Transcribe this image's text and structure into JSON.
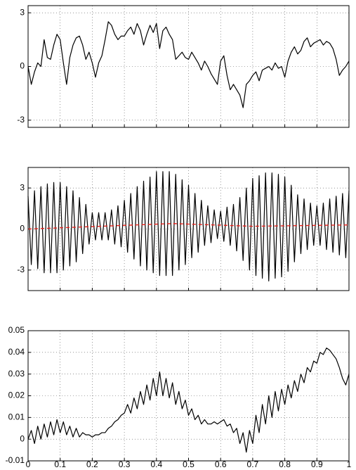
{
  "chart_data": [
    {
      "type": "line",
      "x": [
        0,
        0.01,
        0.02,
        0.03,
        0.04,
        0.05,
        0.06,
        0.07,
        0.08,
        0.09,
        0.1,
        0.11,
        0.12,
        0.13,
        0.14,
        0.15,
        0.16,
        0.17,
        0.18,
        0.19,
        0.2,
        0.21,
        0.22,
        0.23,
        0.24,
        0.25,
        0.26,
        0.27,
        0.28,
        0.29,
        0.3,
        0.31,
        0.32,
        0.33,
        0.34,
        0.35,
        0.36,
        0.37,
        0.38,
        0.39,
        0.4,
        0.41,
        0.42,
        0.43,
        0.44,
        0.45,
        0.46,
        0.47,
        0.48,
        0.49,
        0.5,
        0.51,
        0.52,
        0.53,
        0.54,
        0.55,
        0.56,
        0.57,
        0.58,
        0.59,
        0.6,
        0.61,
        0.62,
        0.63,
        0.64,
        0.65,
        0.66,
        0.67,
        0.68,
        0.69,
        0.7,
        0.71,
        0.72,
        0.73,
        0.74,
        0.75,
        0.76,
        0.77,
        0.78,
        0.79,
        0.8,
        0.81,
        0.82,
        0.83,
        0.84,
        0.85,
        0.86,
        0.87,
        0.88,
        0.89,
        0.9,
        0.91,
        0.92,
        0.93,
        0.94,
        0.95,
        0.96,
        0.97,
        0.98,
        0.99,
        1
      ],
      "series": [
        {
          "color": "#000000",
          "values": [
            0,
            -1,
            -0.3,
            0.2,
            0,
            1.5,
            0.5,
            0.4,
            1.2,
            1.8,
            1.5,
            0.2,
            -1.0,
            0.5,
            1.2,
            1.6,
            1.7,
            1.2,
            0.4,
            0.8,
            0.2,
            -0.6,
            0.2,
            0.6,
            1.5,
            2.5,
            2.3,
            1.8,
            1.5,
            1.7,
            1.7,
            2.0,
            2.2,
            1.8,
            2.4,
            2.0,
            1.2,
            1.8,
            2.3,
            1.9,
            2.4,
            1.0,
            2.0,
            2.2,
            1.8,
            1.5,
            0.4,
            0.6,
            0.8,
            0.5,
            0.4,
            0.8,
            0.5,
            0.2,
            -0.2,
            0.3,
            0.0,
            -0.4,
            -0.7,
            -1.0,
            0.3,
            0.6,
            -0.5,
            -1.3,
            -1.0,
            -1.3,
            -1.6,
            -2.3,
            -1.0,
            -0.8,
            -0.5,
            -0.3,
            -0.8,
            -0.2,
            -0.1,
            0.0,
            -0.2,
            0.2,
            -0.1,
            0.0,
            -0.6,
            0.3,
            0.8,
            1.1,
            0.7,
            0.9,
            1.4,
            1.6,
            1.1,
            1.3,
            1.4,
            1.5,
            1.2,
            1.4,
            1.3,
            1.0,
            0.4,
            -0.5,
            -0.2,
            0.0,
            0.3
          ]
        }
      ],
      "xlim": [
        0,
        1
      ],
      "xticks": [
        0,
        0.1,
        0.2,
        0.3,
        0.4,
        0.5,
        0.6,
        0.7,
        0.8,
        0.9,
        1
      ],
      "show_xtick_labels": false,
      "ylim": [
        -3.4,
        3.4
      ],
      "yticks": [
        -3,
        0,
        3
      ],
      "grid": true
    },
    {
      "type": "line",
      "x": [
        0,
        0.01,
        0.02,
        0.03,
        0.04,
        0.05,
        0.06,
        0.07,
        0.08,
        0.09,
        0.1,
        0.11,
        0.12,
        0.13,
        0.14,
        0.15,
        0.16,
        0.17,
        0.18,
        0.19,
        0.2,
        0.21,
        0.22,
        0.23,
        0.24,
        0.25,
        0.26,
        0.27,
        0.28,
        0.29,
        0.3,
        0.31,
        0.32,
        0.33,
        0.34,
        0.35,
        0.36,
        0.37,
        0.38,
        0.39,
        0.4,
        0.41,
        0.42,
        0.43,
        0.44,
        0.45,
        0.46,
        0.47,
        0.48,
        0.49,
        0.5,
        0.51,
        0.52,
        0.53,
        0.54,
        0.55,
        0.56,
        0.57,
        0.58,
        0.59,
        0.6,
        0.61,
        0.62,
        0.63,
        0.64,
        0.65,
        0.66,
        0.67,
        0.68,
        0.69,
        0.7,
        0.71,
        0.72,
        0.73,
        0.74,
        0.75,
        0.76,
        0.77,
        0.78,
        0.79,
        0.8,
        0.81,
        0.82,
        0.83,
        0.84,
        0.85,
        0.86,
        0.87,
        0.88,
        0.89,
        0.9,
        0.91,
        0.92,
        0.93,
        0.94,
        0.95,
        0.96,
        0.97,
        0.98,
        0.99,
        1
      ],
      "series": [
        {
          "color": "#000000",
          "values": [
            2.4,
            -2.6,
            2.8,
            -2.9,
            3.1,
            -3.2,
            3.3,
            -3.2,
            3.4,
            -3.2,
            3.4,
            -3.0,
            3.1,
            -2.7,
            2.8,
            -2.4,
            2.3,
            -1.8,
            1.8,
            -1.1,
            1.2,
            -0.8,
            1.2,
            -0.8,
            1.2,
            -0.8,
            1.4,
            -1.1,
            1.7,
            -1.3,
            2.1,
            -1.7,
            2.6,
            -2.2,
            3.1,
            -2.7,
            3.5,
            -3.0,
            3.8,
            -3.2,
            4.2,
            -3.4,
            4.2,
            -3.4,
            4.2,
            -3.4,
            4.0,
            -3.0,
            3.6,
            -2.6,
            3.2,
            -2.1,
            2.6,
            -1.7,
            2.1,
            -1.2,
            1.7,
            -1.0,
            1.4,
            -0.7,
            1.3,
            -0.9,
            1.6,
            -1.2,
            1.8,
            -1.6,
            2.3,
            -2.3,
            3.0,
            -3.0,
            3.7,
            -3.4,
            3.9,
            -3.6,
            4.1,
            -3.8,
            4.1,
            -3.6,
            4.0,
            -3.5,
            3.8,
            -3.1,
            3.2,
            -2.4,
            2.5,
            -1.8,
            2.2,
            -1.5,
            1.9,
            -1.2,
            1.7,
            -1.2,
            1.9,
            -1.5,
            2.2,
            -1.7,
            2.4,
            -1.9,
            2.6,
            -2.1,
            2.8
          ]
        },
        {
          "color": "#e8211b",
          "dashed": true,
          "x": [
            0,
            0.45,
            0.7,
            1
          ],
          "values": [
            0,
            0.4,
            0.2,
            0.3
          ]
        }
      ],
      "xlim": [
        0,
        1
      ],
      "xticks": [
        0,
        0.1,
        0.2,
        0.3,
        0.4,
        0.5,
        0.6,
        0.7,
        0.8,
        0.9,
        1
      ],
      "show_xtick_labels": false,
      "ylim": [
        -4.5,
        4.5
      ],
      "yticks": [
        -3,
        0,
        3
      ],
      "grid": true
    },
    {
      "type": "line",
      "x": [
        0,
        0.01,
        0.02,
        0.03,
        0.04,
        0.05,
        0.06,
        0.07,
        0.08,
        0.09,
        0.1,
        0.11,
        0.12,
        0.13,
        0.14,
        0.15,
        0.16,
        0.17,
        0.18,
        0.19,
        0.2,
        0.21,
        0.22,
        0.23,
        0.24,
        0.25,
        0.26,
        0.27,
        0.28,
        0.29,
        0.3,
        0.31,
        0.32,
        0.33,
        0.34,
        0.35,
        0.36,
        0.37,
        0.38,
        0.39,
        0.4,
        0.41,
        0.42,
        0.43,
        0.44,
        0.45,
        0.46,
        0.47,
        0.48,
        0.49,
        0.5,
        0.51,
        0.52,
        0.53,
        0.54,
        0.55,
        0.56,
        0.57,
        0.58,
        0.59,
        0.6,
        0.61,
        0.62,
        0.63,
        0.64,
        0.65,
        0.66,
        0.67,
        0.68,
        0.69,
        0.7,
        0.71,
        0.72,
        0.73,
        0.74,
        0.75,
        0.76,
        0.77,
        0.78,
        0.79,
        0.8,
        0.81,
        0.82,
        0.83,
        0.84,
        0.85,
        0.86,
        0.87,
        0.88,
        0.89,
        0.9,
        0.91,
        0.92,
        0.93,
        0.94,
        0.95,
        0.96,
        0.97,
        0.98,
        0.99,
        1
      ],
      "series": [
        {
          "color": "#000000",
          "values": [
            0.0,
            0.004,
            -0.002,
            0.006,
            0.0,
            0.007,
            0.001,
            0.008,
            0.002,
            0.009,
            0.003,
            0.008,
            0.002,
            0.006,
            0.001,
            0.005,
            0.001,
            0.003,
            0.002,
            0.002,
            0.001,
            0.002,
            0.002,
            0.003,
            0.003,
            0.005,
            0.006,
            0.008,
            0.009,
            0.011,
            0.012,
            0.016,
            0.012,
            0.019,
            0.014,
            0.022,
            0.016,
            0.025,
            0.018,
            0.028,
            0.02,
            0.031,
            0.02,
            0.028,
            0.019,
            0.026,
            0.016,
            0.022,
            0.014,
            0.018,
            0.011,
            0.014,
            0.009,
            0.011,
            0.007,
            0.009,
            0.007,
            0.007,
            0.008,
            0.007,
            0.008,
            0.009,
            0.006,
            0.007,
            0.003,
            0.005,
            -0.002,
            0.003,
            -0.006,
            0.004,
            -0.002,
            0.011,
            0.003,
            0.016,
            0.007,
            0.02,
            0.01,
            0.022,
            0.013,
            0.023,
            0.016,
            0.025,
            0.019,
            0.027,
            0.022,
            0.03,
            0.026,
            0.033,
            0.031,
            0.036,
            0.035,
            0.04,
            0.039,
            0.042,
            0.041,
            0.039,
            0.037,
            0.033,
            0.028,
            0.025,
            0.03
          ]
        }
      ],
      "xlim": [
        0,
        1
      ],
      "xticks": [
        0,
        0.1,
        0.2,
        0.3,
        0.4,
        0.5,
        0.6,
        0.7,
        0.8,
        0.9,
        1
      ],
      "show_xtick_labels": true,
      "ylim": [
        -0.01,
        0.05
      ],
      "yticks": [
        -0.01,
        0,
        0.01,
        0.02,
        0.03,
        0.04,
        0.05
      ],
      "grid": true
    }
  ]
}
